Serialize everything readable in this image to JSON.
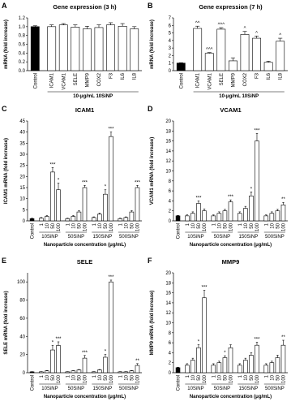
{
  "chart_data": [
    {
      "type": "bar",
      "panel": "A",
      "title": "Gene expression (3 h)",
      "ylabel": "mRNA (fold increase)",
      "color": "#ffffff",
      "control_color": "#000000",
      "ylim": [
        0,
        1.2
      ],
      "yticks": [
        {
          "value": 0,
          "label": "0.0"
        },
        0.2,
        0.4,
        0.6,
        0.8,
        {
          "value": 1,
          "label": "1.0"
        },
        1.2
      ],
      "control": {
        "name": "Control",
        "value": 1.0,
        "error": 0.02
      },
      "groups": [
        {
          "name": "10-μg/mL 10SiNP",
          "categories": [
            "ICAM1",
            "VCAM1",
            "SELE",
            "MMP9",
            "COX2",
            "F3",
            "IL6",
            "IL8"
          ],
          "values": [
            1.0,
            1.04,
            0.99,
            0.95,
            0.98,
            1.04,
            1.01,
            0.95
          ],
          "errors": [
            0.04,
            0.03,
            0.05,
            0.06,
            0.06,
            0.05,
            0.06,
            0.05
          ],
          "annotations": [
            null,
            null,
            null,
            null,
            null,
            null,
            null,
            null
          ]
        }
      ]
    },
    {
      "type": "bar",
      "panel": "B",
      "title": "Gene expression (7 h)",
      "ylabel": "mRNA (fold increase)",
      "color": "#ffffff",
      "control_color": "#000000",
      "ylim": [
        0,
        7
      ],
      "yticks": [
        0,
        1,
        2,
        3,
        4,
        5,
        6,
        7
      ],
      "control": {
        "name": "Control",
        "value": 1.0,
        "error": 0.05
      },
      "groups": [
        {
          "name": "10-μg/mL 10SiNP",
          "categories": [
            "ICAM1",
            "VCAM1",
            "SELE",
            "MMP9",
            "COX2",
            "F3",
            "IL6",
            "IL8"
          ],
          "values": [
            5.6,
            2.3,
            5.5,
            1.3,
            4.8,
            4.3,
            1.1,
            3.9
          ],
          "errors": [
            0.3,
            0.1,
            0.2,
            0.4,
            0.4,
            0.3,
            0.15,
            0.4
          ],
          "annotations": [
            "^^",
            "^^^",
            "^^^",
            null,
            "^",
            "^",
            null,
            "^"
          ]
        }
      ]
    },
    {
      "type": "bar",
      "panel": "C",
      "title": "ICAM1",
      "ylabel": "ICAM1 mRNA (fold increase)",
      "xlabel": "Nanoparticle concentration (μg/mL)",
      "color": "#ffffff",
      "control_color": "#000000",
      "ylim": [
        0,
        45
      ],
      "yticks": [
        0,
        5,
        10,
        15,
        20,
        25,
        30,
        35,
        40,
        45
      ],
      "control": {
        "name": "Control",
        "value": 1.0,
        "error": 0.2
      },
      "groups": [
        {
          "name": "10SiNP",
          "categories": [
            "1",
            "10",
            "50",
            "100"
          ],
          "values": [
            1.2,
            2.0,
            22,
            14
          ],
          "errors": [
            0.3,
            0.4,
            2,
            3
          ],
          "annotations": [
            null,
            null,
            "***",
            "*"
          ]
        },
        {
          "name": "50SiNP",
          "categories": [
            "1",
            "10",
            "50",
            "100"
          ],
          "values": [
            1.0,
            2.0,
            4.0,
            15
          ],
          "errors": [
            0.2,
            0.4,
            0.6,
            1
          ],
          "annotations": [
            null,
            null,
            null,
            "***"
          ]
        },
        {
          "name": "150SiNP",
          "categories": [
            "1",
            "10",
            "50",
            "100"
          ],
          "values": [
            1.5,
            3.0,
            12,
            38
          ],
          "errors": [
            0.3,
            0.5,
            2,
            2
          ],
          "annotations": [
            null,
            null,
            "*",
            "***"
          ]
        },
        {
          "name": "500SiNP",
          "categories": [
            "1",
            "10",
            "50",
            "100"
          ],
          "values": [
            1.0,
            1.5,
            4.0,
            15
          ],
          "errors": [
            0.2,
            0.3,
            0.6,
            1
          ],
          "annotations": [
            null,
            null,
            null,
            "***"
          ]
        }
      ]
    },
    {
      "type": "bar",
      "panel": "D",
      "title": "VCAM1",
      "ylabel": "VCAM1 mRNA (fold increase)",
      "xlabel": "Nanoparticle concentration (μg/mL)",
      "color": "#ffffff",
      "control_color": "#000000",
      "ylim": [
        0,
        20
      ],
      "yticks": [
        0,
        2,
        4,
        6,
        8,
        10,
        12,
        14,
        16,
        18,
        20
      ],
      "control": {
        "name": "Control",
        "value": 1.0,
        "error": 0.1
      },
      "groups": [
        {
          "name": "10SiNP",
          "categories": [
            "1",
            "10",
            "50",
            "100"
          ],
          "values": [
            1.0,
            1.5,
            3.5,
            2.0
          ],
          "errors": [
            0.2,
            0.3,
            0.5,
            0.4
          ],
          "annotations": [
            null,
            null,
            "***",
            null
          ]
        },
        {
          "name": "50SiNP",
          "categories": [
            "1",
            "10",
            "50",
            "100"
          ],
          "values": [
            1.0,
            1.5,
            2.0,
            3.8
          ],
          "errors": [
            0.2,
            0.3,
            0.3,
            0.4
          ],
          "annotations": [
            null,
            null,
            null,
            "***"
          ]
        },
        {
          "name": "150SiNP",
          "categories": [
            "1",
            "10",
            "50",
            "100"
          ],
          "values": [
            1.5,
            2.5,
            5.0,
            16
          ],
          "errors": [
            0.3,
            0.4,
            0.8,
            1.5
          ],
          "annotations": [
            null,
            null,
            "*",
            "***"
          ]
        },
        {
          "name": "500SiNP",
          "categories": [
            "1",
            "10",
            "50",
            "100"
          ],
          "values": [
            1.0,
            1.5,
            2.0,
            3.2
          ],
          "errors": [
            0.2,
            0.3,
            0.3,
            0.5
          ],
          "annotations": [
            null,
            null,
            null,
            "**"
          ]
        }
      ]
    },
    {
      "type": "bar",
      "panel": "E",
      "title": "SELE",
      "ylabel": "SELE mRNA (fold increase)",
      "xlabel": "Nanoparticle concentration (μg/mL)",
      "color": "#ffffff",
      "control_color": "#000000",
      "ylim": [
        0,
        110
      ],
      "yticks": [
        0,
        20,
        40,
        60,
        80,
        100
      ],
      "control": {
        "name": "Control",
        "value": 1.0,
        "error": 0.2
      },
      "groups": [
        {
          "name": "10SiNP",
          "categories": [
            "1",
            "10",
            "50",
            "100"
          ],
          "values": [
            1.0,
            2.0,
            25,
            30
          ],
          "errors": [
            0.2,
            0.4,
            5,
            4
          ],
          "annotations": [
            null,
            null,
            "*",
            "***"
          ]
        },
        {
          "name": "50SiNP",
          "categories": [
            "1",
            "10",
            "50",
            "100"
          ],
          "values": [
            1.0,
            2.0,
            3.0,
            16
          ],
          "errors": [
            0.2,
            0.3,
            0.5,
            3
          ],
          "annotations": [
            null,
            null,
            null,
            "***"
          ]
        },
        {
          "name": "150SiNP",
          "categories": [
            "1",
            "10",
            "50",
            "100"
          ],
          "values": [
            1.0,
            3.0,
            17,
            100
          ],
          "errors": [
            0.2,
            0.5,
            3,
            2
          ],
          "annotations": [
            null,
            null,
            "*",
            "***"
          ]
        },
        {
          "name": "500SiNP",
          "categories": [
            "1",
            "10",
            "50",
            "100"
          ],
          "values": [
            1.0,
            1.0,
            2.0,
            8.0
          ],
          "errors": [
            0.2,
            0.2,
            0.4,
            2
          ],
          "annotations": [
            null,
            null,
            null,
            "**"
          ]
        }
      ]
    },
    {
      "type": "bar",
      "panel": "F",
      "title": "MMP9",
      "ylabel": "MMP9 mRNA (fold increase)",
      "xlabel": "Nanoparticle concentration (μg/mL)",
      "color": "#ffffff",
      "control_color": "#000000",
      "ylim": [
        0,
        20
      ],
      "yticks": [
        0,
        2,
        4,
        6,
        8,
        10,
        12,
        14,
        16,
        18,
        20
      ],
      "control": {
        "name": "Control",
        "value": 1.0,
        "error": 0.1
      },
      "groups": [
        {
          "name": "10SiNP",
          "categories": [
            "1",
            "10",
            "50",
            "100"
          ],
          "values": [
            1.5,
            2.5,
            5.0,
            15
          ],
          "errors": [
            0.3,
            0.4,
            0.6,
            1.5
          ],
          "annotations": [
            null,
            null,
            "*",
            "***"
          ]
        },
        {
          "name": "50SiNP",
          "categories": [
            "1",
            "10",
            "50",
            "100"
          ],
          "values": [
            1.5,
            2.0,
            3.0,
            5.0
          ],
          "errors": [
            0.3,
            0.3,
            0.4,
            0.6
          ],
          "annotations": [
            null,
            null,
            "*",
            null
          ]
        },
        {
          "name": "150SiNP",
          "categories": [
            "1",
            "10",
            "50",
            "100"
          ],
          "values": [
            1.5,
            2.5,
            3.5,
            5.5
          ],
          "errors": [
            0.3,
            0.4,
            0.5,
            0.6
          ],
          "annotations": [
            null,
            null,
            null,
            "***"
          ]
        },
        {
          "name": "500SiNP",
          "categories": [
            "1",
            "10",
            "50",
            "100"
          ],
          "values": [
            1.5,
            2.0,
            3.0,
            5.5
          ],
          "errors": [
            0.3,
            0.3,
            0.5,
            1.0
          ],
          "annotations": [
            null,
            null,
            null,
            "**"
          ]
        }
      ]
    }
  ]
}
